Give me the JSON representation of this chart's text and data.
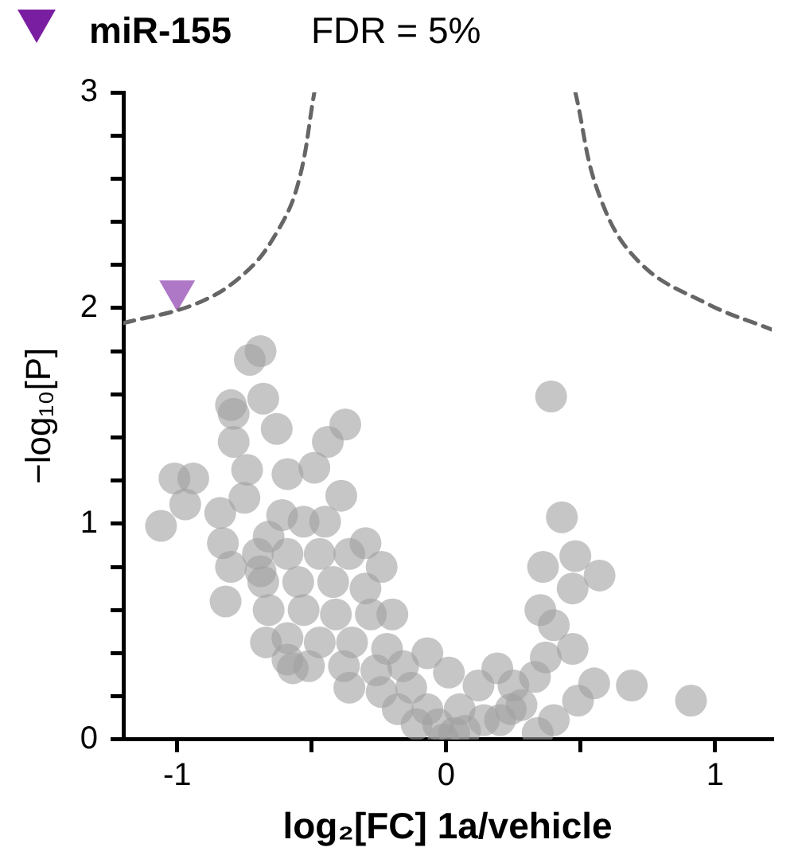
{
  "chart_data": {
    "type": "scatter",
    "xlabel": "log₂[FC] 1a/vehicle",
    "ylabel": "−log₁₀[P]",
    "xlim": [
      -1.2,
      1.21
    ],
    "ylim": [
      0,
      3
    ],
    "xticks": [
      -1,
      {
        "value": -0.5,
        "label": null
      },
      0,
      {
        "value": 0.5,
        "label": null
      },
      1
    ],
    "yticks": [
      0,
      {
        "value": 0.2,
        "label": null
      },
      {
        "value": 0.4,
        "label": null
      },
      {
        "value": 0.6,
        "label": null
      },
      {
        "value": 0.8,
        "label": null
      },
      1,
      {
        "value": 1.2,
        "label": null
      },
      {
        "value": 1.4,
        "label": null
      },
      {
        "value": 1.6,
        "label": null
      },
      {
        "value": 1.8,
        "label": null
      },
      2,
      {
        "value": 2.2,
        "label": null
      },
      {
        "value": 2.4,
        "label": null
      },
      {
        "value": 2.6,
        "label": null
      },
      {
        "value": 2.8,
        "label": null
      },
      3
    ],
    "grid": false,
    "legend": "top left",
    "marker": "circle",
    "series": [
      {
        "color": "#a0a0a0",
        "x": [
          -0.69,
          -0.73,
          -0.8,
          -0.68,
          -0.79,
          -0.63,
          -0.79,
          -0.375,
          -0.44,
          -0.49,
          -0.59,
          -0.74,
          -1.01,
          -0.94,
          -0.97,
          -0.75,
          -0.39,
          -1.06,
          -0.84,
          -0.83,
          -0.8,
          -0.82,
          -0.67,
          -0.57,
          0.39,
          0.43,
          0.36,
          0.48,
          0.57,
          0.47,
          0.35,
          0.4,
          0.47,
          0.37,
          0.55,
          0.69,
          0.91,
          0.49,
          0.4,
          0.34,
          0.19,
          0.12,
          0.25,
          0.33,
          -0.07,
          0.01,
          0.03,
          -0.03,
          0.14,
          0.24,
          -0.66,
          -0.61,
          -0.53,
          -0.45,
          -0.3,
          -0.24,
          -0.7,
          -0.59,
          -0.47,
          -0.36,
          -0.68,
          -0.55,
          -0.42,
          -0.3,
          -0.66,
          -0.53,
          -0.41,
          -0.28,
          -0.2,
          -0.59,
          -0.47,
          -0.35,
          -0.22,
          -0.51,
          -0.38,
          -0.26,
          -0.16,
          -0.36,
          -0.24,
          -0.13,
          -0.18,
          -0.07,
          -0.11,
          -0.01,
          0.07,
          0.2,
          0.05,
          0.28,
          -0.59,
          -0.69
        ],
        "values": [
          1.8,
          1.76,
          1.55,
          1.58,
          1.51,
          1.44,
          1.38,
          1.46,
          1.38,
          1.26,
          1.23,
          1.25,
          1.21,
          1.21,
          1.09,
          1.12,
          1.13,
          0.99,
          1.05,
          0.91,
          0.8,
          0.64,
          0.45,
          0.33,
          1.59,
          1.03,
          0.8,
          0.85,
          0.76,
          0.7,
          0.6,
          0.53,
          0.42,
          0.38,
          0.26,
          0.25,
          0.18,
          0.18,
          0.09,
          0.03,
          0.33,
          0.25,
          0.25,
          0.29,
          0.4,
          0.31,
          0.03,
          0.07,
          0.09,
          0.14,
          0.94,
          1.04,
          1.01,
          1.01,
          0.91,
          0.8,
          0.86,
          0.86,
          0.86,
          0.86,
          0.73,
          0.73,
          0.73,
          0.7,
          0.6,
          0.6,
          0.58,
          0.58,
          0.58,
          0.47,
          0.45,
          0.45,
          0.42,
          0.34,
          0.34,
          0.32,
          0.34,
          0.24,
          0.22,
          0.24,
          0.14,
          0.14,
          0.07,
          0,
          0.04,
          0.09,
          0.14,
          0.16,
          0.37,
          0.78
        ]
      },
      {
        "name": "miR-155",
        "color": "#7a1ea1",
        "marker": "triangle",
        "x": [
          -1.0
        ],
        "values": [
          2.08
        ]
      },
      {
        "name": "FDR = 5%",
        "type": "line",
        "color": "#666666",
        "line_style": "dashed",
        "marker": "none",
        "x": [
          -1.2,
          -0.93,
          -0.75,
          -0.63,
          -0.55,
          -0.49,
          null,
          0.48,
          0.57,
          0.72,
          0.97,
          1.21
        ],
        "values": [
          1.93,
          2.02,
          2.16,
          2.35,
          2.58,
          3,
          null,
          3,
          2.52,
          2.21,
          2.02,
          1.9
        ]
      }
    ]
  }
}
